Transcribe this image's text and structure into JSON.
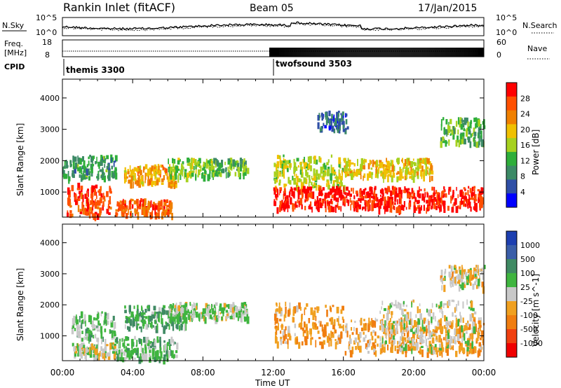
{
  "header": {
    "station": "Rankin Inlet (fitACF)",
    "beam": "Beam 05",
    "date": "17/Jan/2015"
  },
  "strip_labels": {
    "nsky": "N.Sky",
    "nsearch": "N.Search",
    "freq_line1": "Freq.",
    "freq_line2": "[MHz]",
    "nave": "Nave",
    "cpid": "CPID",
    "noise_tick_top": "10^5",
    "noise_tick_bottom": "10^0",
    "freq_tick_top": "18",
    "freq_tick_bottom": "8",
    "nave_tick_top": "60",
    "nave_tick_bottom": "0"
  },
  "cpid_segments": [
    {
      "label": "themis 3300",
      "start_hour": 0.0
    },
    {
      "label": "twofsound 3503",
      "start_hour": 11.8
    }
  ],
  "x_axis": {
    "label": "Time UT",
    "ticks": [
      "00:00",
      "04:00",
      "08:00",
      "12:00",
      "16:00",
      "20:00",
      "00:00"
    ]
  },
  "colors": {
    "power_scale": [
      "#0000ff",
      "#2f4fa6",
      "#3c8a66",
      "#2eae3a",
      "#a6d11f",
      "#f0c000",
      "#f08000",
      "#ff5000",
      "#ff0000"
    ],
    "velocity_scale": [
      "#1d3fb0",
      "#3a5ea8",
      "#3f8a63",
      "#3fb53f",
      "#c8c8c8",
      "#f0a020",
      "#f07d10",
      "#f04010",
      "#f00000"
    ]
  },
  "chart_data": [
    {
      "type": "heatmap",
      "title": "Power",
      "ylabel": "Slant Range [km]",
      "yticks": [
        "1000",
        "2000",
        "3000",
        "4000"
      ],
      "ylim": [
        200,
        4600
      ],
      "xlim": [
        0,
        24
      ],
      "colorbar": {
        "label": "Power [dB]",
        "ticks": [
          "4",
          "8",
          "12",
          "16",
          "20",
          "24",
          "28"
        ],
        "range": [
          0,
          30
        ]
      },
      "scatter_regions": [
        {
          "t0": 0.2,
          "t1": 2.8,
          "r0": 300,
          "r1": 1300,
          "value": 26
        },
        {
          "t0": 0.0,
          "t1": 3.0,
          "r0": 1500,
          "r1": 2200,
          "value": 10
        },
        {
          "t0": 3.0,
          "t1": 6.2,
          "r0": 300,
          "r1": 800,
          "value": 24
        },
        {
          "t0": 3.5,
          "t1": 6.5,
          "r0": 1300,
          "r1": 1900,
          "value": 20
        },
        {
          "t0": 6.0,
          "t1": 8.5,
          "r0": 1500,
          "r1": 2100,
          "value": 14
        },
        {
          "t0": 8.5,
          "t1": 10.5,
          "r0": 1600,
          "r1": 2100,
          "value": 12
        },
        {
          "t0": 12.0,
          "t1": 16.0,
          "r0": 1200,
          "r1": 2200,
          "value": 16
        },
        {
          "t0": 12.0,
          "t1": 24.0,
          "r0": 500,
          "r1": 1200,
          "value": 28
        },
        {
          "t0": 16.0,
          "t1": 21.0,
          "r0": 1500,
          "r1": 2100,
          "value": 18
        },
        {
          "t0": 21.5,
          "t1": 24.0,
          "r0": 2600,
          "r1": 3400,
          "value": 12
        },
        {
          "t0": 14.5,
          "t1": 16.2,
          "r0": 3000,
          "r1": 3600,
          "value": 6
        }
      ]
    },
    {
      "type": "heatmap",
      "title": "Velocity",
      "ylabel": "Slant Range [km]",
      "yticks": [
        "1000",
        "2000",
        "3000",
        "4000"
      ],
      "ylim": [
        200,
        4600
      ],
      "xlim": [
        0,
        24
      ],
      "colorbar": {
        "label": "Velocity [m s^-1]",
        "ticks": [
          "1000",
          "500",
          "100",
          "25",
          "-25",
          "-100",
          "-500",
          "-1000"
        ],
        "range": [
          -1000,
          1000
        ]
      },
      "scatter_regions": [
        {
          "t0": 0.5,
          "t1": 3.0,
          "r0": 900,
          "r1": 1800,
          "value": 150
        },
        {
          "t0": 0.5,
          "t1": 3.0,
          "r0": 400,
          "r1": 800,
          "value": 0
        },
        {
          "t0": 3.0,
          "t1": 6.5,
          "r0": 300,
          "r1": 1000,
          "value": 200
        },
        {
          "t0": 3.5,
          "t1": 7.0,
          "r0": 1300,
          "r1": 2000,
          "value": 300
        },
        {
          "t0": 6.0,
          "t1": 10.5,
          "r0": 1600,
          "r1": 2100,
          "value": 80
        },
        {
          "t0": 12.0,
          "t1": 16.0,
          "r0": 800,
          "r1": 2100,
          "value": -300
        },
        {
          "t0": 16.0,
          "t1": 24.0,
          "r0": 500,
          "r1": 1600,
          "value": -250
        },
        {
          "t0": 18.0,
          "t1": 23.5,
          "r0": 600,
          "r1": 2200,
          "value": 0
        },
        {
          "t0": 21.5,
          "t1": 24.0,
          "r0": 2600,
          "r1": 3300,
          "value": -100
        }
      ]
    }
  ]
}
